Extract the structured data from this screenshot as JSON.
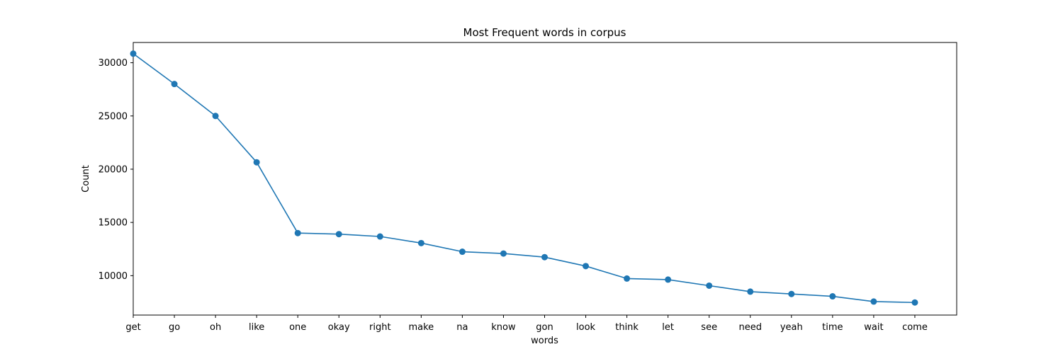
{
  "chart_data": {
    "type": "line",
    "title": "Most Frequent words in corpus",
    "xlabel": "words",
    "ylabel": "Count",
    "categories": [
      "get",
      "go",
      "oh",
      "like",
      "one",
      "okay",
      "right",
      "make",
      "na",
      "know",
      "gon",
      "look",
      "think",
      "let",
      "see",
      "need",
      "yeah",
      "time",
      "wait",
      "come"
    ],
    "values": [
      30850,
      28000,
      25000,
      20650,
      14000,
      13900,
      13680,
      13060,
      12250,
      12080,
      11740,
      10900,
      9730,
      9630,
      9060,
      8500,
      8280,
      8060,
      7570,
      7480
    ],
    "yticks": [
      10000,
      15000,
      20000,
      25000,
      30000
    ],
    "ylim": [
      6300,
      31900
    ],
    "grid": false,
    "line_color": "#1f77b4",
    "marker": "circle"
  }
}
